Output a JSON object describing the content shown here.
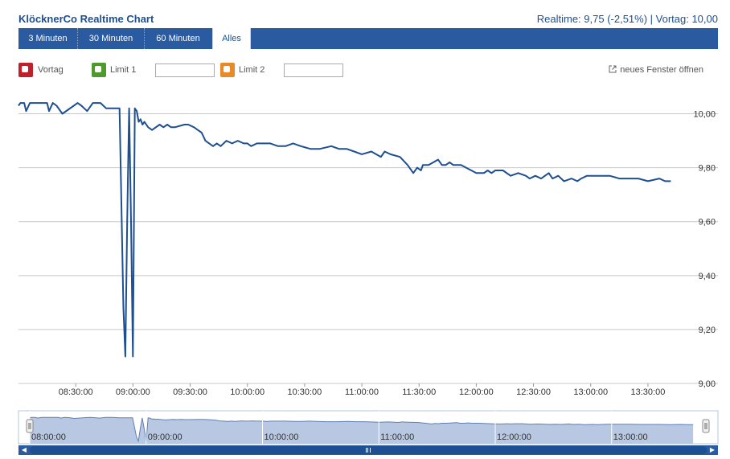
{
  "header": {
    "title": "KlöcknerCo Realtime Chart",
    "quote": "Realtime: 9,75 (-2,51%) | Vortag: 10,00"
  },
  "tabs": [
    {
      "label": "3 Minuten",
      "active": false
    },
    {
      "label": "30 Minuten",
      "active": false
    },
    {
      "label": "60 Minuten",
      "active": false
    },
    {
      "label": "Alles",
      "active": true
    }
  ],
  "toolbar": {
    "vortag_label": "Vortag",
    "limit1_label": "Limit 1",
    "limit1_value": "",
    "limit2_label": "Limit 2",
    "limit2_value": "",
    "new_window_label": "neues Fenster öffnen"
  },
  "colors": {
    "accent": "#2a5aa0",
    "line": "#1d4f91",
    "vortag": "#c0202a",
    "limit1": "#4e9a2c",
    "limit2": "#e88a28"
  },
  "chart_data": {
    "type": "line",
    "title": "",
    "xlabel": "",
    "ylabel": "",
    "ylim": [
      9.0,
      10.1
    ],
    "xlim": [
      "08:00",
      "13:49"
    ],
    "y_ticks": [
      "10,00",
      "9,80",
      "9,60",
      "9,40",
      "9,20",
      "9,00"
    ],
    "y_tick_values": [
      10.0,
      9.8,
      9.6,
      9.4,
      9.2,
      9.0
    ],
    "x_ticks": [
      "08:30:00",
      "09:00:00",
      "09:30:00",
      "10:00:00",
      "10:30:00",
      "11:00:00",
      "11:30:00",
      "12:00:00",
      "12:30:00",
      "13:00:00",
      "13:30:00"
    ],
    "x_tick_times": [
      "08:30",
      "09:00",
      "09:30",
      "10:00",
      "10:30",
      "11:00",
      "11:30",
      "12:00",
      "12:30",
      "13:00",
      "13:30"
    ],
    "grid": true,
    "legend": "none",
    "series": [
      {
        "time": [
          "08:00",
          "08:01",
          "08:03",
          "08:04",
          "08:06",
          "08:11",
          "08:15",
          "08:16",
          "08:18",
          "08:20",
          "08:23",
          "08:29",
          "08:31",
          "08:33",
          "08:36",
          "08:39",
          "08:43",
          "08:46",
          "08:53",
          "08:55",
          "08:56",
          "08:57",
          "08:58",
          "08:59",
          "09:00",
          "09:01",
          "09:02",
          "09:03",
          "09:04",
          "09:05",
          "09:06",
          "09:08",
          "09:10",
          "09:14",
          "09:16",
          "09:18",
          "09:20",
          "09:22",
          "09:27",
          "09:29",
          "09:32",
          "09:34",
          "09:36",
          "09:38",
          "09:40",
          "09:42",
          "09:44",
          "09:46",
          "09:49",
          "09:52",
          "09:55",
          "09:58",
          "10:00",
          "10:02",
          "10:05",
          "10:08",
          "10:12",
          "10:16",
          "10:20",
          "10:24",
          "10:28",
          "10:33",
          "10:38",
          "10:44",
          "10:48",
          "10:52",
          "10:56",
          "11:00",
          "11:05",
          "11:10",
          "11:12",
          "11:15",
          "11:20",
          "11:24",
          "11:27",
          "11:29",
          "11:31",
          "11:32",
          "11:33",
          "11:34",
          "11:35",
          "11:40",
          "11:42",
          "11:44",
          "11:46",
          "11:48",
          "11:52",
          "12:00",
          "12:04",
          "12:06",
          "12:08",
          "12:10",
          "12:14",
          "12:18",
          "12:22",
          "12:26",
          "12:28",
          "12:31",
          "12:34",
          "12:38",
          "12:40",
          "12:43",
          "12:46",
          "12:50",
          "12:53",
          "12:55",
          "12:58",
          "13:01",
          "13:05",
          "13:10",
          "13:15",
          "13:20",
          "13:25",
          "13:30",
          "13:36",
          "13:39",
          "13:42"
        ],
        "values": [
          10.03,
          10.04,
          10.04,
          10.01,
          10.04,
          10.04,
          10.04,
          10.01,
          10.04,
          10.03,
          10.0,
          10.03,
          10.04,
          10.03,
          10.01,
          10.04,
          10.04,
          10.02,
          10.02,
          9.28,
          9.1,
          9.6,
          10.02,
          9.6,
          9.1,
          10.02,
          10.01,
          9.97,
          9.98,
          9.96,
          9.97,
          9.95,
          9.94,
          9.96,
          9.95,
          9.96,
          9.95,
          9.95,
          9.96,
          9.96,
          9.95,
          9.94,
          9.93,
          9.9,
          9.89,
          9.88,
          9.89,
          9.88,
          9.9,
          9.89,
          9.9,
          9.89,
          9.89,
          9.88,
          9.89,
          9.89,
          9.89,
          9.88,
          9.88,
          9.89,
          9.88,
          9.87,
          9.87,
          9.88,
          9.87,
          9.87,
          9.86,
          9.85,
          9.86,
          9.84,
          9.86,
          9.85,
          9.84,
          9.81,
          9.78,
          9.8,
          9.79,
          9.81,
          9.81,
          9.81,
          9.81,
          9.83,
          9.81,
          9.81,
          9.82,
          9.81,
          9.81,
          9.78,
          9.78,
          9.79,
          9.78,
          9.79,
          9.79,
          9.77,
          9.78,
          9.77,
          9.76,
          9.77,
          9.76,
          9.78,
          9.76,
          9.77,
          9.75,
          9.76,
          9.75,
          9.76,
          9.77,
          9.77,
          9.77,
          9.77,
          9.76,
          9.76,
          9.76,
          9.75,
          9.76,
          9.75,
          9.75
        ]
      }
    ],
    "navigator": {
      "x_ticks": [
        "08:00:00",
        "09:00:00",
        "10:00:00",
        "11:00:00",
        "12:00:00",
        "13:00:00"
      ],
      "x_tick_times": [
        "08:00",
        "09:00",
        "10:00",
        "11:00",
        "12:00",
        "13:00"
      ]
    }
  }
}
